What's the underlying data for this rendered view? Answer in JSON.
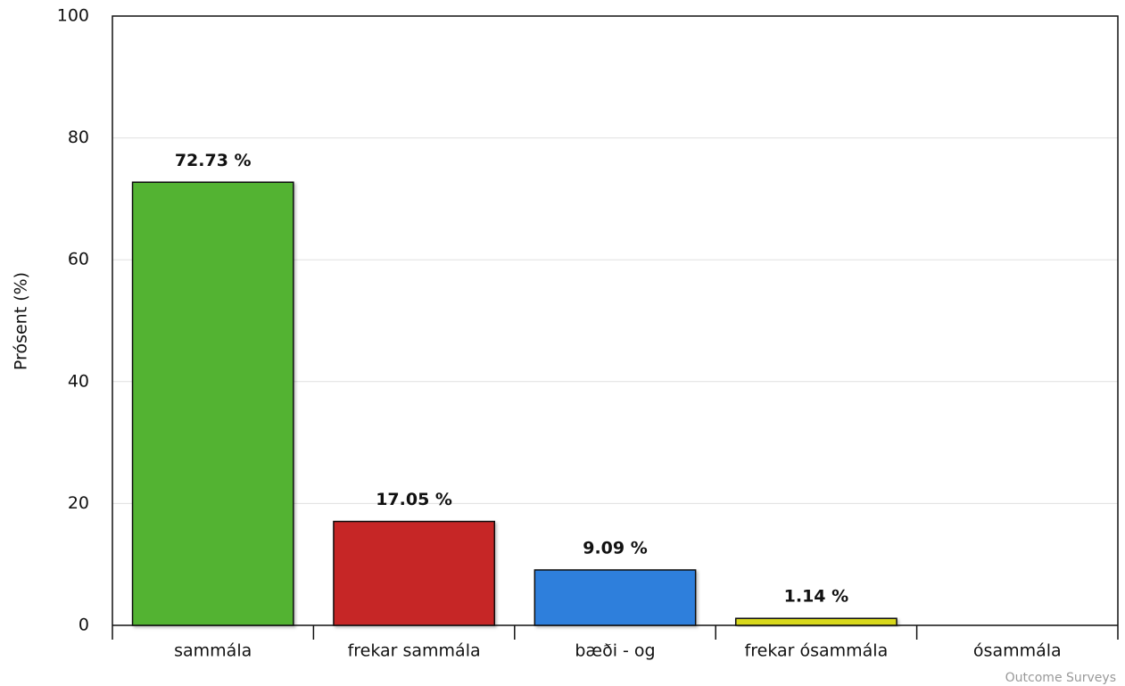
{
  "chart_data": {
    "type": "bar",
    "y_label": "Prósent (%)",
    "categories": [
      "sammála",
      "frekar sammála",
      "bæði - og",
      "frekar ósammála",
      "ósammála"
    ],
    "values": [
      72.73,
      17.05,
      9.09,
      1.14,
      0
    ],
    "value_labels": [
      "72.73 %",
      "17.05 %",
      "9.09 %",
      "1.14 %",
      null
    ],
    "colors": [
      "#52b332",
      "#c62828",
      "#2f7fdc",
      "#d8d81a",
      "#888888"
    ],
    "ylim": [
      0,
      100
    ],
    "yticks": [
      0,
      20,
      40,
      60,
      80,
      100
    ],
    "grid": true,
    "credit": "Outcome Surveys"
  }
}
